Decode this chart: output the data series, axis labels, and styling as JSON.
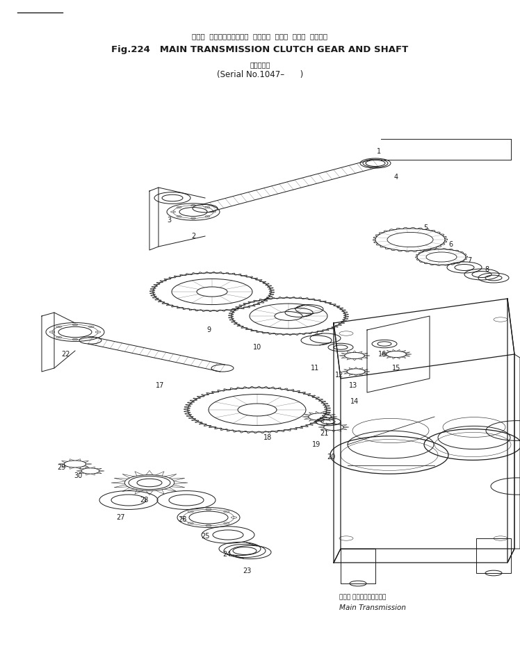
{
  "title_japanese": "メイン  トランスミッション  クラッチ  ギヤー  および  シャフト",
  "title_line1": "Fig.224   MAIN TRANSMISSION CLUTCH GEAR AND SHAFT",
  "title_line2_jp": "（適用号機",
  "title_line2": "(Serial No.1047–      )",
  "label_main_trans_jp": "メイン トランスミッション",
  "label_main_trans": "Main Transmission",
  "bg_color": "#ffffff",
  "line_color": "#1a1a1a",
  "fig_width": 7.48,
  "fig_height": 9.66,
  "dpi": 100
}
